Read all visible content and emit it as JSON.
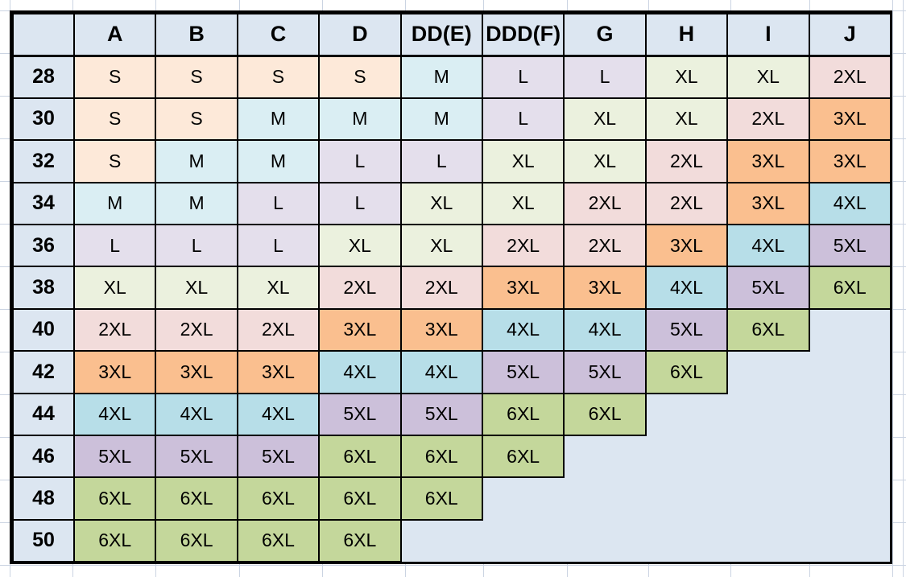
{
  "chart_data": {
    "type": "table",
    "corner_label": "",
    "columns": [
      "A",
      "B",
      "C",
      "D",
      "DD(E)",
      "DDD(F)",
      "G",
      "H",
      "I",
      "J"
    ],
    "rows": [
      {
        "band": "28",
        "cells": [
          "S",
          "S",
          "S",
          "S",
          "M",
          "L",
          "L",
          "XL",
          "XL",
          "2XL"
        ]
      },
      {
        "band": "30",
        "cells": [
          "S",
          "S",
          "M",
          "M",
          "M",
          "L",
          "XL",
          "XL",
          "2XL",
          "3XL"
        ]
      },
      {
        "band": "32",
        "cells": [
          "S",
          "M",
          "M",
          "L",
          "L",
          "XL",
          "XL",
          "2XL",
          "3XL",
          "3XL"
        ]
      },
      {
        "band": "34",
        "cells": [
          "M",
          "M",
          "L",
          "L",
          "XL",
          "XL",
          "2XL",
          "2XL",
          "3XL",
          "4XL"
        ]
      },
      {
        "band": "36",
        "cells": [
          "L",
          "L",
          "L",
          "XL",
          "XL",
          "2XL",
          "2XL",
          "3XL",
          "4XL",
          "5XL"
        ]
      },
      {
        "band": "38",
        "cells": [
          "XL",
          "XL",
          "XL",
          "2XL",
          "2XL",
          "3XL",
          "3XL",
          "4XL",
          "5XL",
          "6XL"
        ]
      },
      {
        "band": "40",
        "cells": [
          "2XL",
          "2XL",
          "2XL",
          "3XL",
          "3XL",
          "4XL",
          "4XL",
          "5XL",
          "6XL",
          ""
        ]
      },
      {
        "band": "42",
        "cells": [
          "3XL",
          "3XL",
          "3XL",
          "4XL",
          "4XL",
          "5XL",
          "5XL",
          "6XL",
          "",
          ""
        ]
      },
      {
        "band": "44",
        "cells": [
          "4XL",
          "4XL",
          "4XL",
          "5XL",
          "5XL",
          "6XL",
          "6XL",
          "",
          "",
          ""
        ]
      },
      {
        "band": "46",
        "cells": [
          "5XL",
          "5XL",
          "5XL",
          "6XL",
          "6XL",
          "6XL",
          "",
          "",
          "",
          ""
        ]
      },
      {
        "band": "48",
        "cells": [
          "6XL",
          "6XL",
          "6XL",
          "6XL",
          "6XL",
          "",
          "",
          "",
          "",
          ""
        ]
      },
      {
        "band": "50",
        "cells": [
          "6XL",
          "6XL",
          "6XL",
          "6XL",
          "",
          "",
          "",
          "",
          "",
          ""
        ]
      }
    ],
    "size_colors": {
      "S": "#FDE9D9",
      "M": "#DAEEF3",
      "L": "#E4DFEC",
      "XL": "#EBF1DE",
      "2XL": "#F2DCDB",
      "3XL": "#FABF8F",
      "4XL": "#B7DEE8",
      "5XL": "#CCC0DA",
      "6XL": "#C4D79B"
    },
    "header_bg": "#DCE6F1",
    "row_header_bg": "#DCE6F1",
    "empty_bg": "#DCE6F1",
    "table_border_color": "#000000",
    "sheet_gridline_color": "#CBD4E2",
    "text_color": "#000000"
  }
}
